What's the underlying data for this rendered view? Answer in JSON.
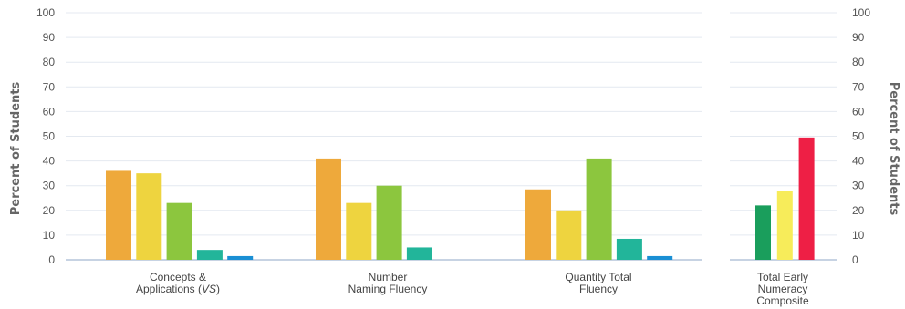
{
  "chart_data": [
    {
      "type": "bar",
      "ylabel": "Percent of Students",
      "ylim": [
        0,
        100
      ],
      "yticks": [
        0,
        10,
        20,
        30,
        40,
        50,
        60,
        70,
        80,
        90,
        100
      ],
      "grid": true,
      "groups": [
        {
          "label_lines": [
            "Concepts &",
            "Applications (VS)"
          ],
          "values": [
            36,
            35,
            23,
            4,
            1.5
          ]
        },
        {
          "label_lines": [
            "Number",
            "Naming Fluency"
          ],
          "values": [
            41,
            23,
            30,
            5,
            0
          ]
        },
        {
          "label_lines": [
            "Quantity Total",
            "Fluency"
          ],
          "values": [
            28.5,
            20,
            41,
            8.5,
            1.5
          ]
        }
      ],
      "series_colors": [
        "#eea93b",
        "#eed43f",
        "#8cc63e",
        "#22b59a",
        "#1a8fd4"
      ]
    },
    {
      "type": "bar",
      "ylabel": "Percent of Students",
      "ylim": [
        0,
        100
      ],
      "yticks": [
        0,
        10,
        20,
        30,
        40,
        50,
        60,
        70,
        80,
        90,
        100
      ],
      "grid": true,
      "groups": [
        {
          "label_lines": [
            "Total Early",
            "Numeracy",
            "Composite"
          ],
          "values": [
            22,
            28,
            49.5
          ]
        }
      ],
      "series_colors": [
        "#1a9e5c",
        "#f7ec5a",
        "#ee1f45"
      ]
    }
  ]
}
